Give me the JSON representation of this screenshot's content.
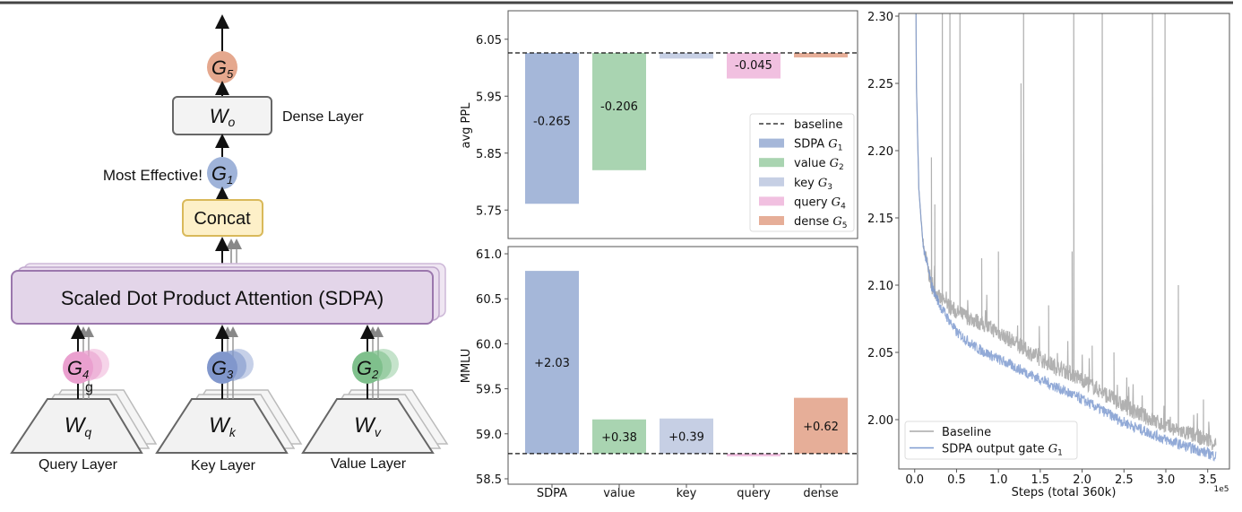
{
  "diagram": {
    "output_gate": {
      "base": "G",
      "sub": "5"
    },
    "dense_box": {
      "base": "W",
      "sub": "o"
    },
    "dense_label": "Dense Layer",
    "sdpa_gate": {
      "base": "G",
      "sub": "1"
    },
    "most_effective": "Most Effective!",
    "concat": "Concat",
    "sdpa": "Scaled Dot Product Attention (SDPA)",
    "query_gate": {
      "base": "G",
      "sub": "4"
    },
    "key_gate": {
      "base": "G",
      "sub": "3"
    },
    "value_gate": {
      "base": "G",
      "sub": "2"
    },
    "g_mark": "g",
    "query_box": {
      "base": "W",
      "sub": "q"
    },
    "key_box": {
      "base": "W",
      "sub": "k"
    },
    "value_box": {
      "base": "W",
      "sub": "v"
    },
    "query_label": "Query Layer",
    "key_label": "Key Layer",
    "value_label": "Value Layer",
    "colors": {
      "G1": "#9fb3d9",
      "G2": "#7fc08c",
      "G3": "#8197cc",
      "G4": "#eaa0cf",
      "G5": "#e5a88e",
      "concat_fill": "#fdf0c8",
      "sdpa_fill": "#e3d5e9"
    }
  },
  "chart_data": [
    {
      "type": "bar",
      "ylabel": "avg PPL",
      "ylim": [
        5.7,
        6.1
      ],
      "yticks": [
        "6.05",
        "5.95",
        "5.85",
        "5.75"
      ],
      "baseline": 6.026,
      "categories": [
        "SDPA",
        "value",
        "key",
        "query",
        "dense"
      ],
      "deltas": [
        -0.265,
        -0.206,
        -0.01,
        -0.045,
        -0.008
      ],
      "data_labels": [
        "-0.265",
        "-0.206",
        "",
        "-0.045",
        ""
      ],
      "colors": [
        "#a5b7d9",
        "#a9d4b1",
        "#c6cfe4",
        "#f1c0e0",
        "#e6ae98"
      ],
      "legend": {
        "placement": "lower-right",
        "entries": [
          {
            "text": "baseline",
            "math": "",
            "sub": ""
          },
          {
            "text": "SDPA ",
            "math": "G",
            "sub": "1"
          },
          {
            "text": "value ",
            "math": "G",
            "sub": "2"
          },
          {
            "text": "key ",
            "math": "G",
            "sub": "3"
          },
          {
            "text": "query ",
            "math": "G",
            "sub": "4"
          },
          {
            "text": "dense ",
            "math": "G",
            "sub": "5"
          }
        ]
      }
    },
    {
      "type": "bar",
      "ylabel": "MMLU",
      "ylim": [
        58.44,
        61.08
      ],
      "yticks": [
        "61.0",
        "60.5",
        "60.0",
        "59.5",
        "59.0",
        "58.5"
      ],
      "baseline": 58.78,
      "categories": [
        "SDPA",
        "value",
        "key",
        "query",
        "dense"
      ],
      "deltas": [
        2.03,
        0.38,
        0.39,
        -0.03,
        0.62
      ],
      "data_labels": [
        "+2.03",
        "+0.38",
        "+0.39",
        "",
        "+0.62"
      ],
      "colors": [
        "#a5b7d9",
        "#a9d4b1",
        "#c6cfe4",
        "#f1c0e0",
        "#e6ae98"
      ]
    },
    {
      "type": "line",
      "xlabel": "Steps (total 360k)",
      "x_scale_label": "1e5",
      "xlim": [
        -0.19,
        3.76
      ],
      "ylim": [
        1.963,
        2.3
      ],
      "xticks": [
        "0.0",
        "0.5",
        "1.0",
        "1.5",
        "2.0",
        "2.5",
        "3.0",
        "3.5"
      ],
      "yticks": [
        "2.30",
        "2.25",
        "2.20",
        "2.15",
        "2.10",
        "2.05",
        "2.00"
      ],
      "legend": {
        "placement": "lower-left"
      },
      "series": [
        {
          "name": "Baseline",
          "math": "",
          "sub": "",
          "color": "#a9a9a9",
          "trend": [
            [
              0.005,
              2.45
            ],
            [
              0.02,
              2.25
            ],
            [
              0.05,
              2.17
            ],
            [
              0.1,
              2.13
            ],
            [
              0.2,
              2.1
            ],
            [
              0.3,
              2.09
            ],
            [
              0.5,
              2.08
            ],
            [
              0.75,
              2.073
            ],
            [
              1.0,
              2.065
            ],
            [
              1.5,
              2.045
            ],
            [
              2.0,
              2.03
            ],
            [
              2.5,
              2.01
            ],
            [
              3.0,
              1.995
            ],
            [
              3.5,
              1.985
            ],
            [
              3.6,
              1.982
            ]
          ],
          "spikes": [
            [
              0.2,
              2.195
            ],
            [
              0.24,
              2.16
            ],
            [
              0.33,
              2.4
            ],
            [
              0.42,
              2.4
            ],
            [
              0.54,
              2.4
            ],
            [
              0.8,
              2.12
            ],
            [
              1.0,
              2.125
            ],
            [
              1.27,
              2.25
            ],
            [
              1.3,
              2.4
            ],
            [
              1.6,
              2.085
            ],
            [
              1.88,
              2.125
            ],
            [
              1.9,
              2.4
            ],
            [
              2.12,
              2.055
            ],
            [
              2.24,
              2.4
            ],
            [
              2.38,
              2.05
            ],
            [
              2.84,
              2.4
            ],
            [
              2.99,
              2.4
            ],
            [
              3.15,
              2.1
            ],
            [
              3.45,
              2.015
            ]
          ]
        },
        {
          "name": "SDPA output gate ",
          "math": "G",
          "sub": "1",
          "color": "#7f9bd0",
          "trend": [
            [
              0.005,
              2.45
            ],
            [
              0.02,
              2.25
            ],
            [
              0.05,
              2.17
            ],
            [
              0.1,
              2.13
            ],
            [
              0.2,
              2.1
            ],
            [
              0.3,
              2.085
            ],
            [
              0.5,
              2.065
            ],
            [
              0.75,
              2.053
            ],
            [
              1.0,
              2.045
            ],
            [
              1.5,
              2.03
            ],
            [
              2.0,
              2.015
            ],
            [
              2.5,
              1.998
            ],
            [
              3.0,
              1.985
            ],
            [
              3.5,
              1.975
            ],
            [
              3.6,
              1.973
            ]
          ],
          "spikes": []
        }
      ]
    }
  ]
}
